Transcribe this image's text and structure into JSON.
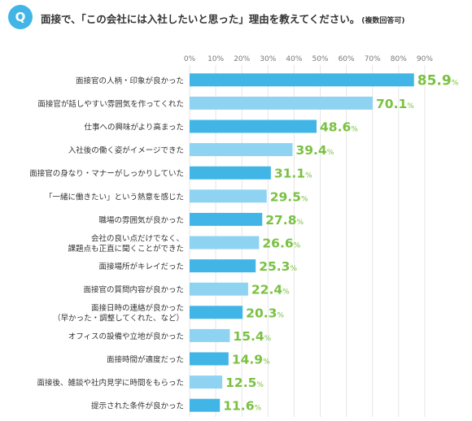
{
  "question": {
    "badge": "Q",
    "text": "面接で、「この会社には入社したいと思った」理由を教えてください。",
    "note": "(複数回答可)"
  },
  "colors": {
    "badge": "#41b6e6",
    "bar_dark": "#41b6e6",
    "bar_light": "#8fd3f2",
    "value": "#7ac142",
    "grid": "#e6e6e6"
  },
  "chart_data": {
    "type": "bar",
    "orientation": "horizontal",
    "title": "",
    "xlabel": "",
    "ylabel": "",
    "xlim": [
      0,
      90
    ],
    "ticks": [
      "0%",
      "10%",
      "20%",
      "30%",
      "40%",
      "50%",
      "60%",
      "70%",
      "80%",
      "90%"
    ],
    "unit": "%",
    "categories": [
      [
        "面接官の人柄・印象が良かった"
      ],
      [
        "面接官が話しやすい雰囲気を作ってくれた"
      ],
      [
        "仕事への興味がより高まった"
      ],
      [
        "入社後の働く姿がイメージできた"
      ],
      [
        "面接官の身なり・マナーがしっかりしていた"
      ],
      [
        "「一緒に働きたい」という熱意を感じた"
      ],
      [
        "職場の雰囲気が良かった"
      ],
      [
        "会社の良い点だけでなく、",
        "課題点も正直に聞くことができた"
      ],
      [
        "面接場所がキレイだった"
      ],
      [
        "面接官の質問内容が良かった"
      ],
      [
        "面接日時の連絡が良かった",
        "（早かった・調整してくれた、など）"
      ],
      [
        "オフィスの設備や立地が良かった"
      ],
      [
        "面接時間が適度だった"
      ],
      [
        "面接後、雑談や社内見学に時間をもらった"
      ],
      [
        "提示された条件が良かった"
      ]
    ],
    "values": [
      85.9,
      70.1,
      48.6,
      39.4,
      31.1,
      29.5,
      27.8,
      26.6,
      25.3,
      22.4,
      20.3,
      15.4,
      14.9,
      12.5,
      11.6
    ],
    "value_labels": [
      "85.9",
      "70.1",
      "48.6",
      "39.4",
      "31.1",
      "29.5",
      "27.8",
      "26.6",
      "25.3",
      "22.4",
      "20.3",
      "15.4",
      "14.9",
      "12.5",
      "11.6"
    ],
    "highlight": [
      true,
      false,
      true,
      false,
      true,
      false,
      true,
      false,
      true,
      false,
      true,
      false,
      true,
      false,
      true
    ]
  }
}
